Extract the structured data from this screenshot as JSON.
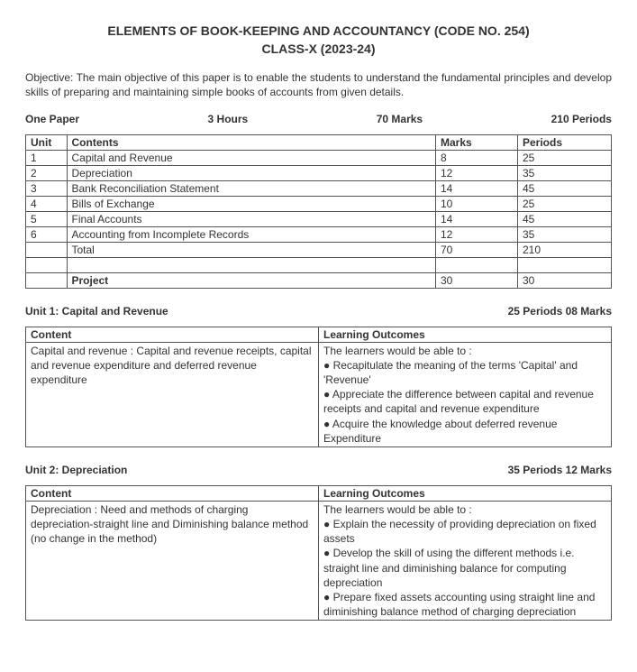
{
  "title_line1": "ELEMENTS OF BOOK-KEEPING AND ACCOUNTANCY (CODE NO. 254)",
  "title_line2": "CLASS-X (2023-24)",
  "objective": "Objective: The main objective of this paper is to enable the students to understand the fundamental principles and develop skills of preparing and maintaining simple books of accounts from given details.",
  "exam": {
    "paper": "One Paper",
    "hours": "3 Hours",
    "marks": "70 Marks",
    "periods": "210 Periods"
  },
  "syllabus": {
    "head_unit": "Unit",
    "head_contents": "Contents",
    "head_marks": "Marks",
    "head_periods": "Periods",
    "rows": [
      {
        "unit": "1",
        "contents": "Capital and Revenue",
        "marks": "8",
        "periods": "25"
      },
      {
        "unit": "2",
        "contents": "Depreciation",
        "marks": "12",
        "periods": "35"
      },
      {
        "unit": "3",
        "contents": "Bank Reconciliation Statement",
        "marks": "14",
        "periods": "45"
      },
      {
        "unit": "4",
        "contents": "Bills of Exchange",
        "marks": "10",
        "periods": "25"
      },
      {
        "unit": "5",
        "contents": "Final Accounts",
        "marks": "14",
        "periods": "45"
      },
      {
        "unit": "6",
        "contents": "Accounting from Incomplete Records",
        "marks": "12",
        "periods": "35"
      }
    ],
    "total_label": "Total",
    "total_marks": "70",
    "total_periods": "210",
    "project_label": "Project",
    "project_marks": "30",
    "project_periods": "30"
  },
  "unit1": {
    "heading": "Unit 1: Capital and Revenue",
    "alloc": "25 Periods 08 Marks",
    "content_head": "Content",
    "outcome_head": "Learning Outcomes",
    "content": "Capital and revenue : Capital and revenue receipts, capital and revenue expenditure and deferred revenue expenditure",
    "outcome": "The learners would be able to :\n● Recapitulate the meaning of the terms 'Capital' and 'Revenue'\n● Appreciate the difference between capital and revenue receipts and capital and revenue expenditure\n● Acquire the knowledge about deferred revenue Expenditure"
  },
  "unit2": {
    "heading": "Unit 2: Depreciation",
    "alloc": "35 Periods 12 Marks",
    "content_head": "Content",
    "outcome_head": "Learning Outcomes",
    "content": "Depreciation : Need and methods of charging depreciation-straight line and Diminishing balance method (no change in the method)",
    "outcome": "The learners would be able to :\n● Explain the necessity of providing depreciation on fixed assets\n● Develop the skill of using the different methods i.e. straight line and diminishing balance for computing depreciation\n● Prepare fixed assets accounting using straight line and diminishing balance method of charging depreciation"
  }
}
